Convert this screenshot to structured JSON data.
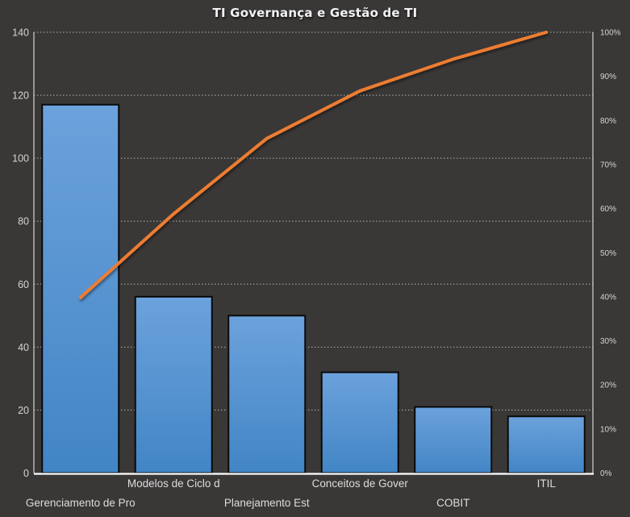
{
  "chart_data": {
    "type": "pareto (bar + cumulative line)",
    "title": "TI Governança e Gestão de TI",
    "categories": [
      "Gerenciamento de Pro",
      "Modelos de Ciclo d",
      "Planejamento Est",
      "Conceitos de Gover",
      "COBIT",
      "ITIL"
    ],
    "series": [
      {
        "name": "frequency-bars",
        "type": "bar",
        "values": [
          117,
          56,
          50,
          32,
          21,
          18
        ]
      },
      {
        "name": "cumulative-percent-line",
        "type": "line",
        "values_pct": [
          39.8,
          58.8,
          75.9,
          86.7,
          93.9,
          100
        ]
      }
    ],
    "left_axis": {
      "min": 0,
      "max": 140,
      "tick_step": 20,
      "tick_labels": [
        "0",
        "20",
        "40",
        "60",
        "80",
        "100",
        "120",
        "140"
      ]
    },
    "right_axis": {
      "min": 0,
      "max": 100,
      "tick_step": 10,
      "tick_labels": [
        "0%",
        "10%",
        "20%",
        "30%",
        "40%",
        "50%",
        "60%",
        "70%",
        "80%",
        "90%",
        "100%"
      ]
    },
    "legend": "none",
    "grid": "horizontal dotted lines at left-axis steps, drawn behind bars",
    "colors": {
      "background": "#3A3737",
      "bar_fill_top": "#6CA2DC",
      "bar_fill_bottom": "#4285C5",
      "bar_border": "#0A0A0A",
      "line": "#ED7D31",
      "gridline": "#C9C7C7",
      "axis_line": "#C8C6C6",
      "baseline": "#FFFFFF",
      "tick_text": "#D6D4D4",
      "category_text": "#DEDCDC",
      "title_text": "#F2F2F2"
    }
  }
}
